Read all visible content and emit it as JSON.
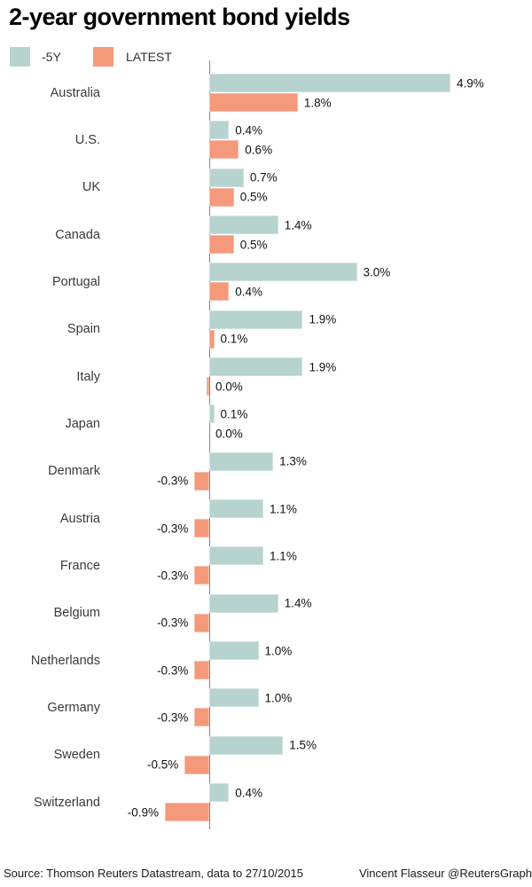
{
  "title": "2-year government bond yields",
  "legend": [
    {
      "label": "-5Y",
      "color": "#b7d3d0"
    },
    {
      "label": "LATEST",
      "color": "#f5997b"
    }
  ],
  "footer": {
    "source": "Source: Thomson Reuters Datastream, data to 27/10/2015",
    "credit": "Vincent Flasseur @ReutersGraph"
  },
  "chart_data": {
    "type": "bar",
    "orientation": "horizontal",
    "unit": "percent",
    "title": "2-year government bond yields",
    "series_names": [
      "-5Y",
      "LATEST"
    ],
    "colors": {
      "y5": "#b7d3d0",
      "latest": "#f5997b",
      "axis": "#858585"
    },
    "x_axis": {
      "baseline": 0,
      "visible_scale": false,
      "implied_range": [
        -0.9,
        4.9
      ]
    },
    "legend_position": "top-left",
    "grid": false,
    "rows": [
      {
        "country": "Australia",
        "y5": 4.9,
        "latest": 1.8,
        "y5_label": "4.9%",
        "latest_label": "1.8%"
      },
      {
        "country": "U.S.",
        "y5": 0.4,
        "latest": 0.6,
        "y5_label": "0.4%",
        "latest_label": "0.6%"
      },
      {
        "country": "UK",
        "y5": 0.7,
        "latest": 0.5,
        "y5_label": "0.7%",
        "latest_label": "0.5%"
      },
      {
        "country": "Canada",
        "y5": 1.4,
        "latest": 0.5,
        "y5_label": "1.4%",
        "latest_label": "0.5%"
      },
      {
        "country": "Portugal",
        "y5": 3.0,
        "latest": 0.4,
        "y5_label": "3.0%",
        "latest_label": "0.4%"
      },
      {
        "country": "Spain",
        "y5": 1.9,
        "latest": 0.1,
        "y5_label": "1.9%",
        "latest_label": "0.1%"
      },
      {
        "country": "Italy",
        "y5": 1.9,
        "latest": 0.0,
        "latest_bar": -0.05,
        "y5_label": "1.9%",
        "latest_label": "0.0%"
      },
      {
        "country": "Japan",
        "y5": 0.1,
        "latest": 0.0,
        "y5_label": "0.1%",
        "latest_label": "0.0%"
      },
      {
        "country": "Denmark",
        "y5": 1.3,
        "latest": -0.3,
        "y5_label": "1.3%",
        "latest_label": "-0.3%"
      },
      {
        "country": "Austria",
        "y5": 1.1,
        "latest": -0.3,
        "y5_label": "1.1%",
        "latest_label": "-0.3%"
      },
      {
        "country": "France",
        "y5": 1.1,
        "latest": -0.3,
        "y5_label": "1.1%",
        "latest_label": "-0.3%"
      },
      {
        "country": "Belgium",
        "y5": 1.4,
        "latest": -0.3,
        "y5_label": "1.4%",
        "latest_label": "-0.3%"
      },
      {
        "country": "Netherlands",
        "y5": 1.0,
        "latest": -0.3,
        "y5_label": "1.0%",
        "latest_label": "-0.3%"
      },
      {
        "country": "Germany",
        "y5": 1.0,
        "latest": -0.3,
        "y5_label": "1.0%",
        "latest_label": "-0.3%"
      },
      {
        "country": "Sweden",
        "y5": 1.5,
        "latest": -0.5,
        "y5_label": "1.5%",
        "latest_label": "-0.5%"
      },
      {
        "country": "Switzerland",
        "y5": 0.4,
        "latest": -0.9,
        "y5_label": "0.4%",
        "latest_label": "-0.9%"
      }
    ]
  }
}
